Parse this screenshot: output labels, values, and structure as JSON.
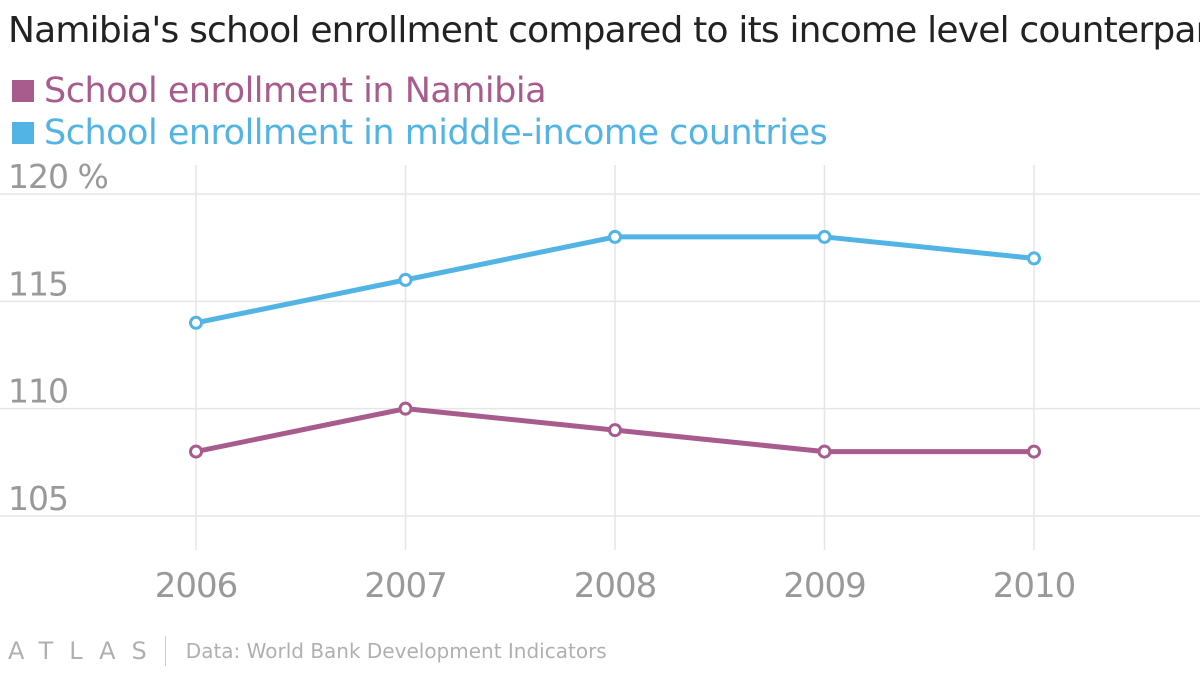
{
  "chart_data": {
    "type": "line",
    "title": "Namibia's school enrollment compared to its income level counterparts",
    "categories": [
      "2006",
      "2007",
      "2008",
      "2009",
      "2010"
    ],
    "series": [
      {
        "name": "School enrollment in Namibia",
        "color": "#a85c8e",
        "values": [
          108,
          110,
          109,
          108,
          108
        ]
      },
      {
        "name": "School enrollment in middle-income countries",
        "color": "#51b4e4",
        "values": [
          114,
          116,
          118,
          118,
          117
        ]
      }
    ],
    "ylim": [
      103,
      121
    ],
    "yticks": [
      105,
      110,
      115,
      120
    ],
    "ytick_labels": [
      "105",
      "110",
      "115",
      "120 %"
    ],
    "grid": true,
    "xlabel": "",
    "ylabel": ""
  },
  "footer": {
    "logo": "ATLAS",
    "source": "Data: World Bank Development Indicators"
  },
  "colors": {
    "grid": "#e6e6e6",
    "tick_text": "#999999",
    "title": "#222222"
  }
}
